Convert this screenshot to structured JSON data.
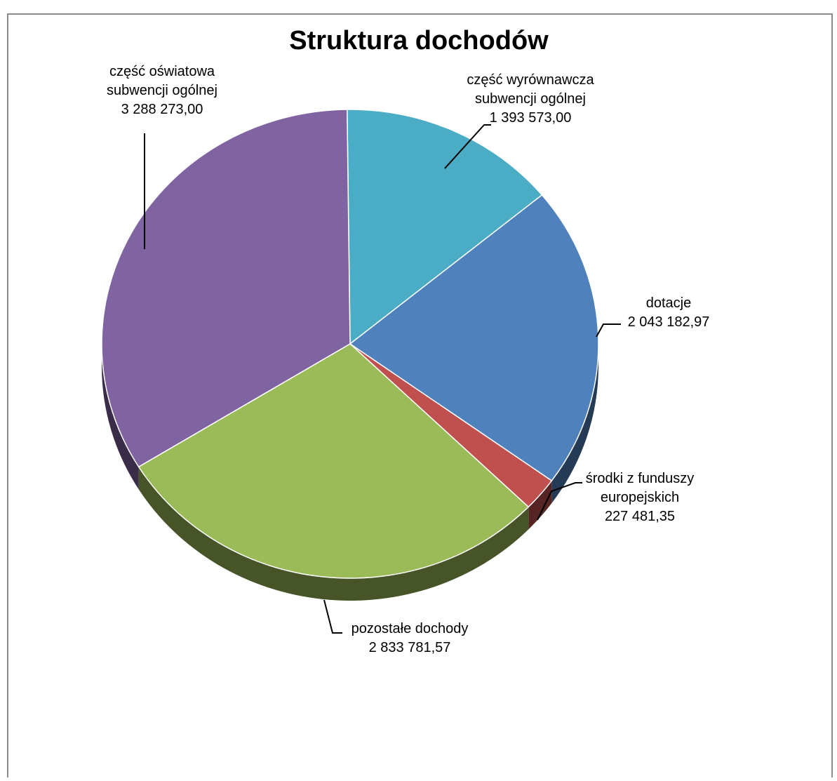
{
  "chart_data": {
    "type": "pie",
    "title": "Struktura dochodów",
    "style": "3d",
    "slices": [
      {
        "name": "część wyrównawcza subwencji ogólnej",
        "label_lines": [
          "część wyrównawcza",
          "subwencji ogólnej",
          "1 393 573,00"
        ],
        "value": 1393573.0,
        "color": "#4BACC6"
      },
      {
        "name": "dotacje",
        "label_lines": [
          "dotacje",
          "2 043 182,97"
        ],
        "value": 2043182.97,
        "color": "#4F81BD"
      },
      {
        "name": "środki z funduszy europejskich",
        "label_lines": [
          "środki z funduszy",
          "europejskich",
          "227 481,35"
        ],
        "value": 227481.35,
        "color": "#C0504D"
      },
      {
        "name": "pozostałe dochody",
        "label_lines": [
          "pozostałe dochody",
          "2 833 781,57"
        ],
        "value": 2833781.57,
        "color": "#9BBB59"
      },
      {
        "name": "część oświatowa subwencji ogólnej",
        "label_lines": [
          "część oświatowa",
          "subwencji ogólnej",
          "3 288 273,00"
        ],
        "value": 3288273.0,
        "color": "#8064A2"
      }
    ]
  }
}
